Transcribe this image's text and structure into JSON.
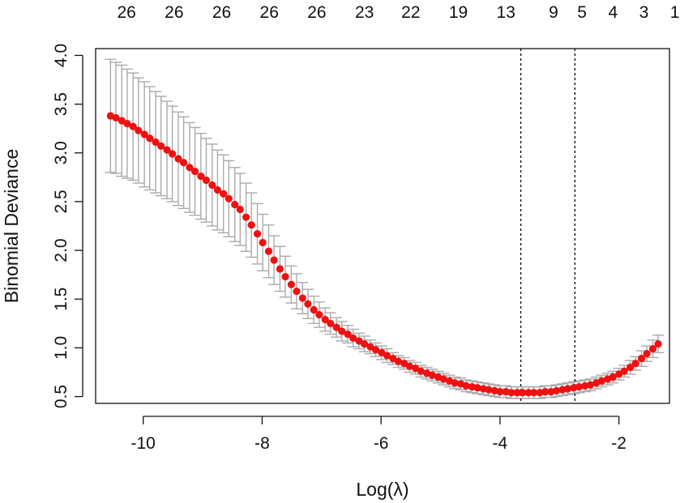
{
  "chart_data": {
    "type": "scatter",
    "title": "",
    "xlabel": "Log(λ)",
    "ylabel": "Binomial Deviance",
    "xlim": [
      -10.8,
      -1.15
    ],
    "ylim": [
      0.43,
      4.07
    ],
    "xticks": [
      -10,
      -8,
      -6,
      -4,
      -2
    ],
    "xtick_labels": [
      "-10",
      "-8",
      "-6",
      "-4",
      "-2"
    ],
    "yticks": [
      0.5,
      1.0,
      1.5,
      2.0,
      2.5,
      3.0,
      3.5,
      4.0
    ],
    "ytick_labels": [
      "0.5",
      "1.0",
      "1.5",
      "2.0",
      "2.5",
      "3.0",
      "3.5",
      "4.0"
    ],
    "top_axis": {
      "positions": [
        -10.0,
        -9.0,
        -8.0,
        -7.0,
        -6.0,
        -5.0,
        -4.0,
        -3.0,
        -2.3,
        -1.7,
        -1.2,
        -0.9,
        -0.6,
        -0.3
      ],
      "labels": [
        "26",
        "26",
        "26",
        "26",
        "26",
        "23",
        "22",
        "19",
        "13",
        "9",
        "5",
        "4",
        "3",
        "1"
      ],
      "label_x": [
        -10.28,
        -9.48,
        -8.68,
        -7.88,
        -7.08,
        -6.28,
        -5.5,
        -4.7,
        -3.9,
        -3.1,
        -2.62,
        -2.1,
        -1.58,
        -1.06
      ]
    },
    "vlines": [
      -3.65,
      -2.74
    ],
    "grid": false,
    "legend": "none",
    "point_color": "#ee1111",
    "errorbar_color": "#aaaaaa",
    "series": [
      {
        "x": [
          -10.55,
          -10.46,
          -10.36,
          -10.27,
          -10.17,
          -10.08,
          -9.98,
          -9.89,
          -9.79,
          -9.7,
          -9.6,
          -9.51,
          -9.41,
          -9.32,
          -9.22,
          -9.13,
          -9.03,
          -8.94,
          -8.84,
          -8.75,
          -8.65,
          -8.56,
          -8.46,
          -8.37,
          -8.27,
          -8.18,
          -8.08,
          -7.99,
          -7.89,
          -7.8,
          -7.7,
          -7.61,
          -7.51,
          -7.42,
          -7.32,
          -7.23,
          -7.13,
          -7.04,
          -6.94,
          -6.85,
          -6.75,
          -6.66,
          -6.56,
          -6.47,
          -6.37,
          -6.28,
          -6.18,
          -6.09,
          -5.99,
          -5.9,
          -5.8,
          -5.71,
          -5.61,
          -5.52,
          -5.42,
          -5.33,
          -5.23,
          -5.14,
          -5.04,
          -4.95,
          -4.85,
          -4.76,
          -4.66,
          -4.57,
          -4.47,
          -4.38,
          -4.28,
          -4.19,
          -4.09,
          -4.0,
          -3.9,
          -3.81,
          -3.71,
          -3.62,
          -3.52,
          -3.43,
          -3.33,
          -3.24,
          -3.14,
          -3.05,
          -2.95,
          -2.86,
          -2.76,
          -2.67,
          -2.57,
          -2.48,
          -2.38,
          -2.29,
          -2.19,
          -2.1,
          -2.0,
          -1.91,
          -1.81,
          -1.72,
          -1.62,
          -1.53,
          -1.43,
          -1.34
        ],
        "y": [
          3.38,
          3.36,
          3.33,
          3.3,
          3.27,
          3.23,
          3.19,
          3.15,
          3.11,
          3.07,
          3.03,
          2.99,
          2.94,
          2.9,
          2.85,
          2.81,
          2.76,
          2.72,
          2.67,
          2.62,
          2.58,
          2.53,
          2.47,
          2.42,
          2.34,
          2.26,
          2.17,
          2.08,
          1.99,
          1.9,
          1.81,
          1.73,
          1.65,
          1.58,
          1.51,
          1.45,
          1.39,
          1.34,
          1.29,
          1.25,
          1.21,
          1.17,
          1.14,
          1.1,
          1.07,
          1.04,
          1.01,
          0.98,
          0.95,
          0.92,
          0.89,
          0.86,
          0.84,
          0.81,
          0.79,
          0.76,
          0.74,
          0.72,
          0.7,
          0.68,
          0.66,
          0.64,
          0.63,
          0.61,
          0.6,
          0.59,
          0.58,
          0.57,
          0.56,
          0.55,
          0.55,
          0.54,
          0.54,
          0.54,
          0.54,
          0.54,
          0.54,
          0.55,
          0.55,
          0.56,
          0.57,
          0.58,
          0.59,
          0.6,
          0.61,
          0.62,
          0.64,
          0.66,
          0.68,
          0.7,
          0.73,
          0.76,
          0.8,
          0.84,
          0.89,
          0.94,
          0.99,
          1.04
        ],
        "err": [
          0.58,
          0.57,
          0.57,
          0.56,
          0.55,
          0.54,
          0.54,
          0.53,
          0.52,
          0.51,
          0.5,
          0.49,
          0.48,
          0.47,
          0.46,
          0.45,
          0.44,
          0.43,
          0.42,
          0.41,
          0.4,
          0.39,
          0.38,
          0.37,
          0.35,
          0.33,
          0.31,
          0.29,
          0.27,
          0.25,
          0.23,
          0.21,
          0.19,
          0.18,
          0.16,
          0.15,
          0.14,
          0.13,
          0.12,
          0.11,
          0.1,
          0.1,
          0.09,
          0.09,
          0.08,
          0.08,
          0.07,
          0.07,
          0.07,
          0.07,
          0.06,
          0.06,
          0.06,
          0.06,
          0.06,
          0.06,
          0.06,
          0.06,
          0.06,
          0.06,
          0.06,
          0.06,
          0.06,
          0.06,
          0.06,
          0.06,
          0.06,
          0.06,
          0.06,
          0.06,
          0.06,
          0.06,
          0.06,
          0.06,
          0.06,
          0.06,
          0.06,
          0.06,
          0.06,
          0.06,
          0.06,
          0.06,
          0.06,
          0.06,
          0.06,
          0.06,
          0.06,
          0.06,
          0.06,
          0.06,
          0.06,
          0.06,
          0.07,
          0.07,
          0.08,
          0.08,
          0.09,
          0.09
        ]
      }
    ]
  }
}
